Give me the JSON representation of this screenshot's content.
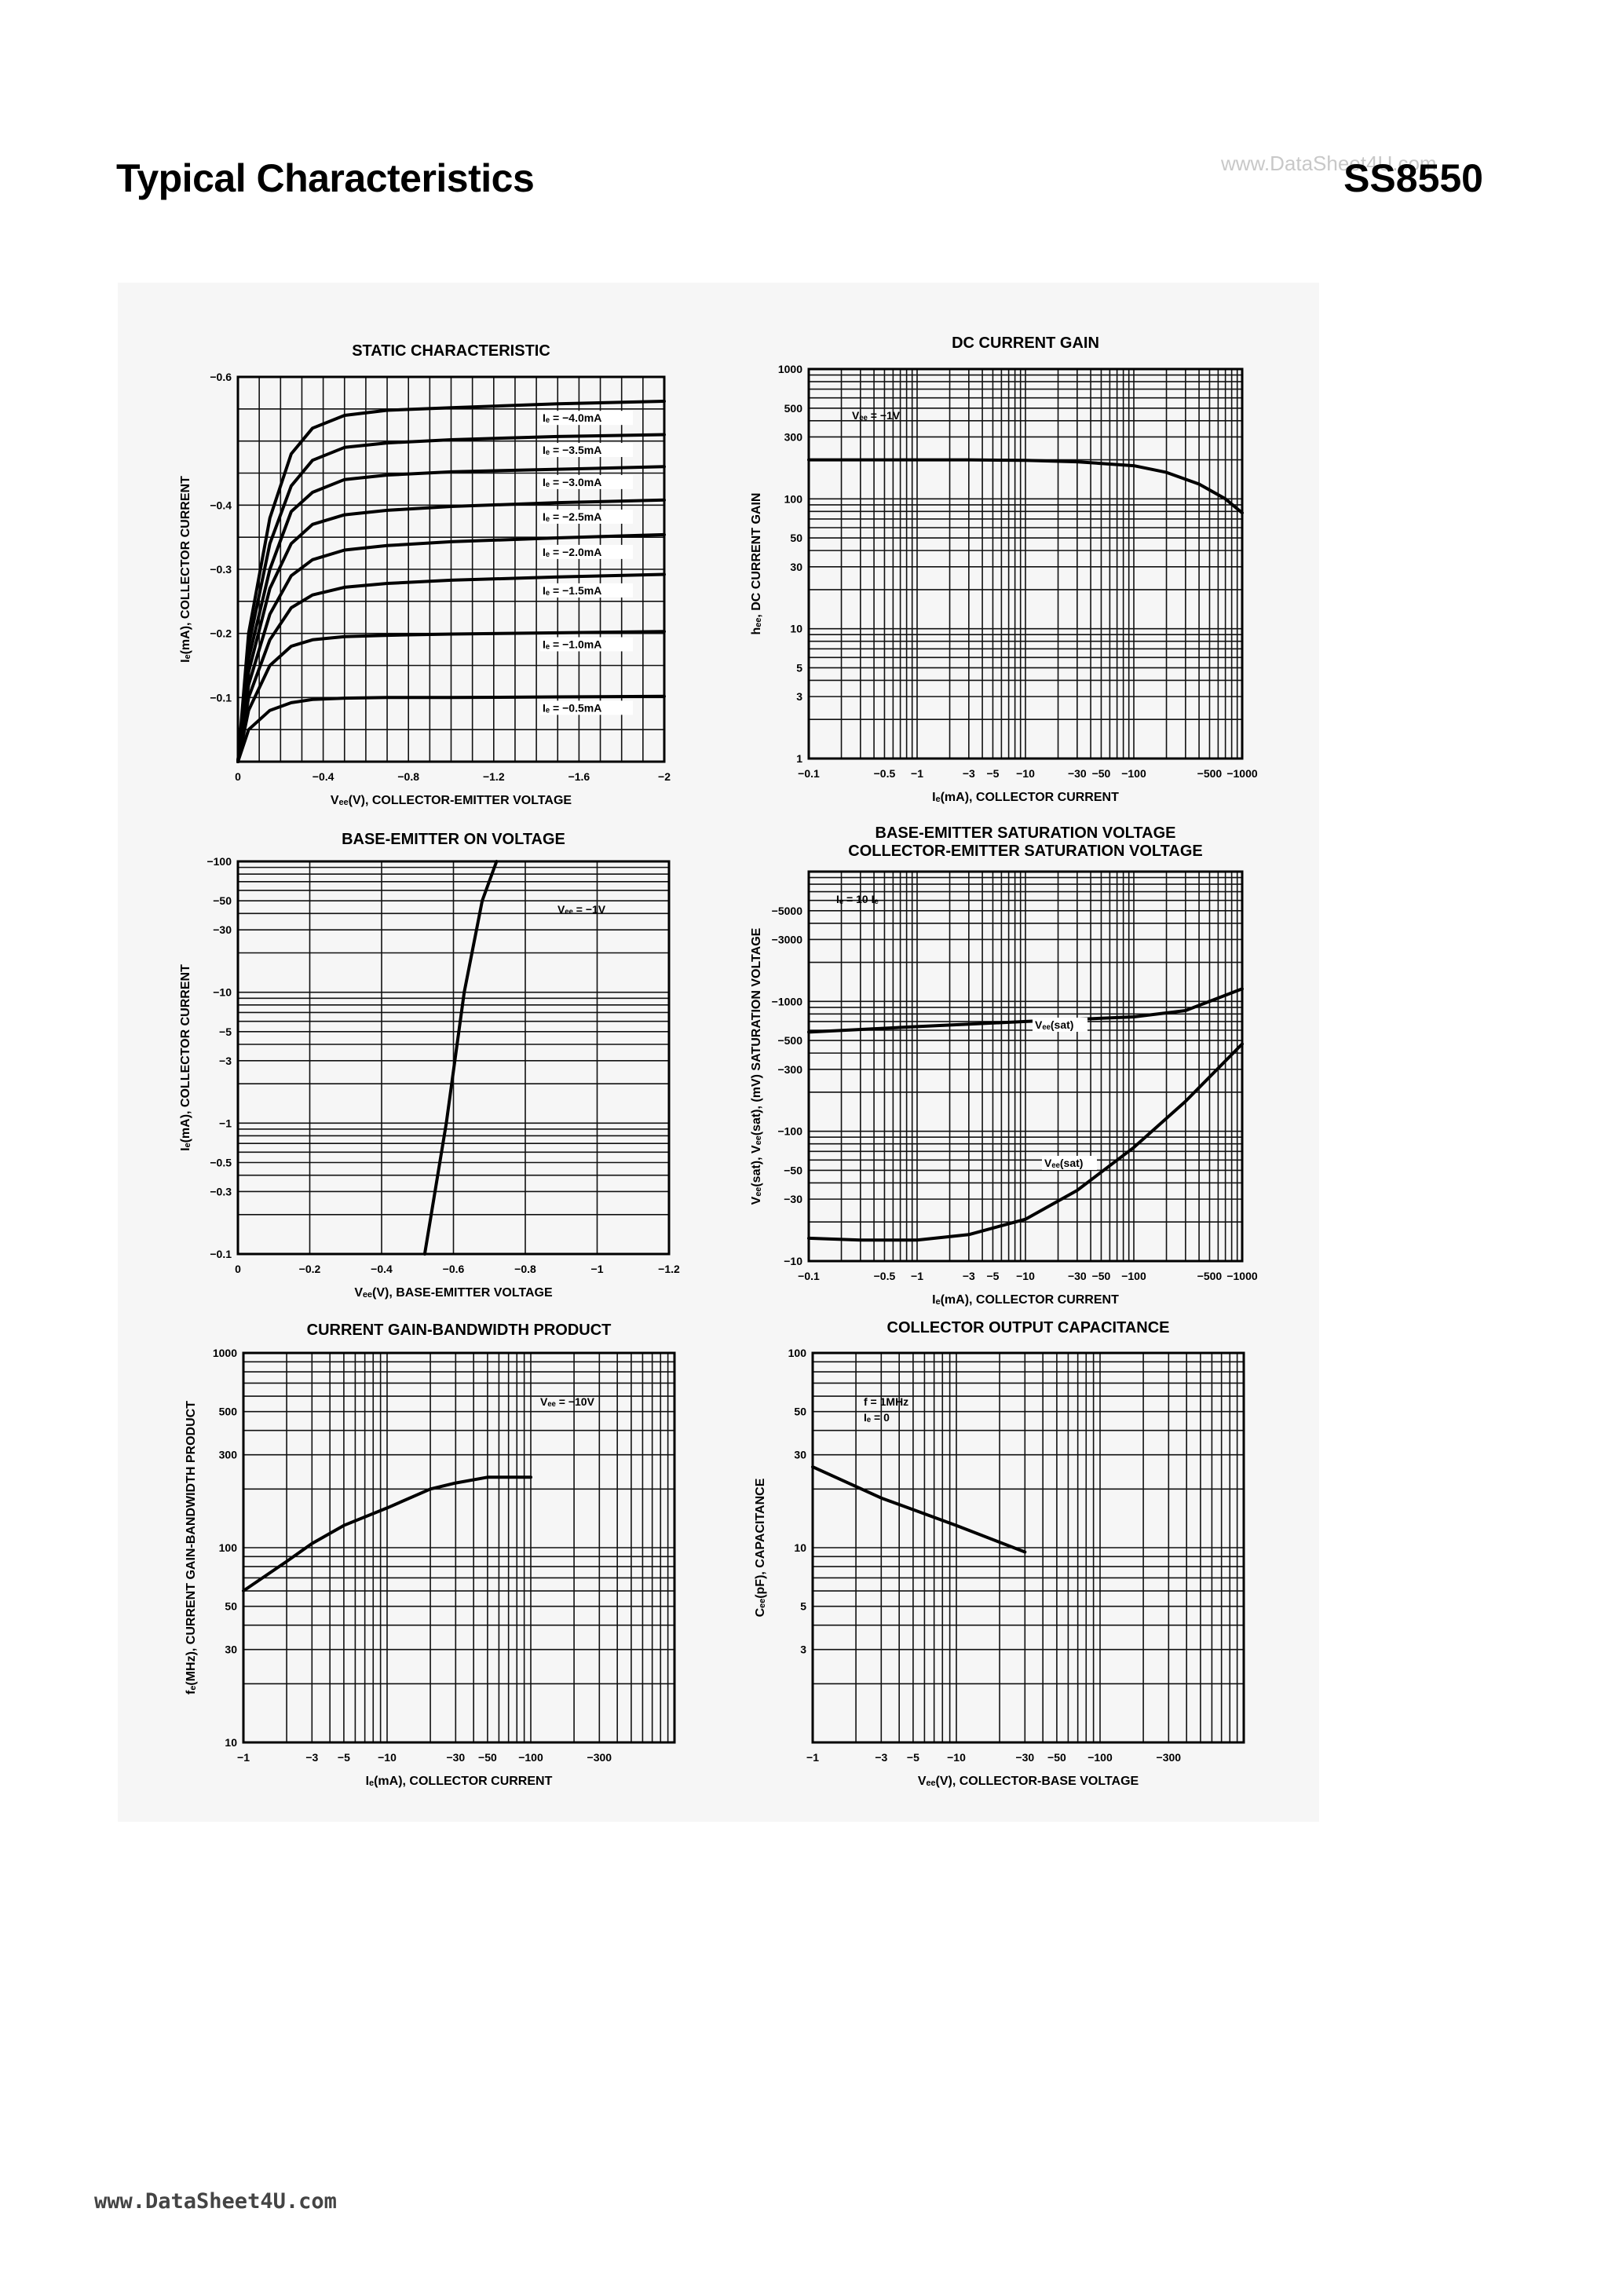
{
  "page": {
    "title": "Typical Characteristics",
    "part_number": "SS8550",
    "watermark": "www.DataSheet4U.com",
    "footer_url": "www.DataSheet4U.com"
  },
  "chart_data": [
    {
      "id": "static",
      "type": "line",
      "title": "STATIC CHARACTERISTIC",
      "xlabel": "Vₑₑ(V), COLLECTOR-EMITTER VOLTAGE",
      "ylabel": "Iₑ(mA), COLLECTOR CURRENT",
      "xscale": "linear",
      "yscale": "linear",
      "xlim": [
        0,
        -2
      ],
      "ylim": [
        0,
        -0.6
      ],
      "xticks": [
        0,
        -0.4,
        -0.8,
        -1.2,
        -1.6,
        -2
      ],
      "xticklabels": [
        "0",
        "−0.4",
        "−0.8",
        "−1.2",
        "−1.6",
        "−2"
      ],
      "yticks": [
        -0.1,
        -0.2,
        -0.3,
        -0.4,
        -0.6
      ],
      "yticklabels": [
        "−0.1",
        "−0.2",
        "−0.3",
        "−0.4",
        "−0.6"
      ],
      "xgrid": [
        0,
        -0.1,
        -0.2,
        -0.3,
        -0.4,
        -0.5,
        -0.6,
        -0.7,
        -0.8,
        -0.9,
        -1.0,
        -1.1,
        -1.2,
        -1.3,
        -1.4,
        -1.5,
        -1.6,
        -1.7,
        -1.8,
        -1.9,
        -2.0
      ],
      "ygrid": [
        0,
        -0.05,
        -0.1,
        -0.15,
        -0.2,
        -0.25,
        -0.3,
        -0.35,
        -0.4,
        -0.45,
        -0.5,
        -0.55,
        -0.6
      ],
      "series": [
        {
          "name": "Iₑ = −4.0mA",
          "x": [
            0,
            -0.05,
            -0.15,
            -0.25,
            -0.35,
            -0.5,
            -0.7,
            -1.0,
            -1.5,
            -2.0
          ],
          "y": [
            0,
            -0.2,
            -0.38,
            -0.48,
            -0.52,
            -0.54,
            -0.548,
            -0.552,
            -0.558,
            -0.562
          ]
        },
        {
          "name": "Iₑ = −3.5mA",
          "x": [
            0,
            -0.05,
            -0.15,
            -0.25,
            -0.35,
            -0.5,
            -0.7,
            -1.0,
            -1.5,
            -2.0
          ],
          "y": [
            0,
            -0.18,
            -0.34,
            -0.43,
            -0.47,
            -0.49,
            -0.497,
            -0.502,
            -0.507,
            -0.51
          ]
        },
        {
          "name": "Iₑ = −3.0mA",
          "x": [
            0,
            -0.05,
            -0.15,
            -0.25,
            -0.35,
            -0.5,
            -0.7,
            -1.0,
            -1.5,
            -2.0
          ],
          "y": [
            0,
            -0.16,
            -0.3,
            -0.39,
            -0.42,
            -0.44,
            -0.447,
            -0.452,
            -0.456,
            -0.46
          ]
        },
        {
          "name": "Iₑ = −2.5mA",
          "x": [
            0,
            -0.05,
            -0.15,
            -0.25,
            -0.35,
            -0.5,
            -0.7,
            -1.0,
            -1.5,
            -2.0
          ],
          "y": [
            0,
            -0.14,
            -0.27,
            -0.34,
            -0.37,
            -0.385,
            -0.392,
            -0.398,
            -0.404,
            -0.408
          ]
        },
        {
          "name": "Iₑ = −2.0mA",
          "x": [
            0,
            -0.05,
            -0.15,
            -0.25,
            -0.35,
            -0.5,
            -0.7,
            -1.0,
            -1.5,
            -2.0
          ],
          "y": [
            0,
            -0.12,
            -0.23,
            -0.29,
            -0.315,
            -0.33,
            -0.337,
            -0.343,
            -0.349,
            -0.354
          ]
        },
        {
          "name": "Iₑ = −1.5mA",
          "x": [
            0,
            -0.05,
            -0.15,
            -0.25,
            -0.35,
            -0.5,
            -0.7,
            -1.0,
            -1.5,
            -2.0
          ],
          "y": [
            0,
            -0.1,
            -0.19,
            -0.24,
            -0.26,
            -0.272,
            -0.278,
            -0.283,
            -0.288,
            -0.292
          ]
        },
        {
          "name": "Iₑ = −1.0mA",
          "x": [
            0,
            -0.05,
            -0.15,
            -0.25,
            -0.35,
            -0.5,
            -0.7,
            -1.0,
            -1.5,
            -2.0
          ],
          "y": [
            0,
            -0.08,
            -0.15,
            -0.18,
            -0.19,
            -0.195,
            -0.197,
            -0.199,
            -0.201,
            -0.203
          ]
        },
        {
          "name": "Iₑ = −0.5mA",
          "x": [
            0,
            -0.05,
            -0.15,
            -0.25,
            -0.35,
            -0.5,
            -0.7,
            -1.0,
            -1.5,
            -2.0
          ],
          "y": [
            0,
            -0.05,
            -0.08,
            -0.092,
            -0.097,
            -0.099,
            -0.1,
            -0.1,
            -0.101,
            -0.102
          ]
        }
      ]
    },
    {
      "id": "dcgain",
      "type": "line",
      "title": "DC CURRENT GAIN",
      "xlabel": "Iₑ(mA), COLLECTOR CURRENT",
      "ylabel": "hₑₑ, DC CURRENT GAIN",
      "xscale": "log",
      "yscale": "log",
      "xlim": [
        0.1,
        1000
      ],
      "ylim": [
        1,
        1000
      ],
      "xticks": [
        0.1,
        0.5,
        1,
        3,
        5,
        10,
        30,
        50,
        100,
        500,
        1000
      ],
      "xticklabels": [
        "−0.1",
        "−0.5",
        "−1",
        "−3",
        "−5",
        "−10",
        "−30",
        "−50",
        "−100",
        "−500",
        "−1000"
      ],
      "yticks": [
        1,
        3,
        5,
        10,
        30,
        50,
        100,
        300,
        500,
        1000
      ],
      "yticklabels": [
        "1",
        "3",
        "5",
        "10",
        "30",
        "50",
        "100",
        "300",
        "500",
        "1000"
      ],
      "annotation": "Vₑₑ = −1V",
      "series": [
        {
          "x": [
            0.1,
            0.3,
            1,
            3,
            10,
            30,
            100,
            200,
            400,
            700,
            1000
          ],
          "y": [
            200,
            200,
            200,
            200,
            198,
            193,
            180,
            160,
            130,
            100,
            78
          ]
        }
      ]
    },
    {
      "id": "beon",
      "type": "line",
      "title": "BASE-EMITTER ON VOLTAGE",
      "xlabel": "Vₑₑ(V), BASE-EMITTER VOLTAGE",
      "ylabel": "Iₑ(mA), COLLECTOR CURRENT",
      "xscale": "linear",
      "yscale": "log",
      "xlim": [
        0,
        -1.2
      ],
      "ylim": [
        0.1,
        100
      ],
      "xticks": [
        0,
        -0.2,
        -0.4,
        -0.6,
        -0.8,
        -1,
        -1.2
      ],
      "xticklabels": [
        "0",
        "−0.2",
        "−0.4",
        "−0.6",
        "−0.8",
        "−1",
        "−1.2"
      ],
      "yticks": [
        0.1,
        0.3,
        0.5,
        1,
        3,
        5,
        10,
        30,
        50,
        100
      ],
      "yticklabels": [
        "−0.1",
        "−0.3",
        "−0.5",
        "−1",
        "−3",
        "−5",
        "−10",
        "−30",
        "−50",
        "−100"
      ],
      "annotation": "Vₑₑ = −1V",
      "series": [
        {
          "x": [
            -0.52,
            -0.58,
            -0.63,
            -0.68,
            -0.72
          ],
          "y": [
            0.1,
            1,
            10,
            50,
            100
          ]
        }
      ]
    },
    {
      "id": "sat",
      "type": "line",
      "title": "BASE-EMITTER SATURATION VOLTAGE",
      "subtitle": "COLLECTOR-EMITTER SATURATION VOLTAGE",
      "xlabel": "Iₑ(mA), COLLECTOR CURRENT",
      "ylabel": "Vₑₑ(sat), Vₑₑ(sat), (mV) SATURATION VOLTAGE",
      "xscale": "log",
      "yscale": "log",
      "xlim": [
        0.1,
        1000
      ],
      "ylim": [
        10,
        10000
      ],
      "xticks": [
        0.1,
        0.5,
        1,
        3,
        5,
        10,
        30,
        50,
        100,
        500,
        1000
      ],
      "xticklabels": [
        "−0.1",
        "−0.5",
        "−1",
        "−3",
        "−5",
        "−10",
        "−30",
        "−50",
        "−100",
        "−500",
        "−1000"
      ],
      "yticks": [
        10,
        30,
        50,
        100,
        300,
        500,
        1000,
        3000,
        5000
      ],
      "yticklabels": [
        "−10",
        "−30",
        "−50",
        "−100",
        "−300",
        "−500",
        "−1000",
        "−3000",
        "−5000"
      ],
      "annotation": "Iₑ = 10 Iₑ",
      "series": [
        {
          "name": "Vₑₑ(sat)",
          "x": [
            0.1,
            1,
            10,
            100,
            300,
            1000
          ],
          "y": [
            580,
            640,
            700,
            760,
            850,
            1250
          ]
        },
        {
          "name": "Vₑₑ(sat)",
          "x": [
            0.1,
            0.3,
            1,
            3,
            10,
            30,
            100,
            300,
            1000
          ],
          "y": [
            15,
            14.5,
            14.5,
            16,
            21,
            35,
            75,
            170,
            470
          ]
        }
      ]
    },
    {
      "id": "ft",
      "type": "line",
      "title": "CURRENT GAIN-BANDWIDTH PRODUCT",
      "xlabel": "Iₑ(mA), COLLECTOR CURRENT",
      "ylabel": "fₑ(MHz), CURRENT GAIN-BANDWIDTH PRODUCT",
      "xscale": "log",
      "yscale": "log",
      "xlim": [
        1,
        1000
      ],
      "ylim": [
        10,
        1000
      ],
      "xticks": [
        1,
        3,
        5,
        10,
        30,
        50,
        100,
        300
      ],
      "xticklabels": [
        "−1",
        "−3",
        "−5",
        "−10",
        "−30",
        "−50",
        "−100",
        "−300"
      ],
      "yticks": [
        10,
        30,
        50,
        100,
        300,
        500,
        1000
      ],
      "yticklabels": [
        "10",
        "30",
        "50",
        "100",
        "300",
        "500",
        "1000"
      ],
      "annotation": "Vₑₑ = −10V",
      "series": [
        {
          "x": [
            1,
            2,
            3,
            5,
            10,
            20,
            30,
            50,
            100
          ],
          "y": [
            60,
            85,
            105,
            130,
            160,
            200,
            215,
            230,
            230
          ]
        }
      ]
    },
    {
      "id": "cob",
      "type": "line",
      "title": "COLLECTOR OUTPUT CAPACITANCE",
      "xlabel": "Vₑₑ(V), COLLECTOR-BASE VOLTAGE",
      "ylabel": "Cₑₑ(pF), CAPACITANCE",
      "xscale": "log",
      "yscale": "log",
      "xlim": [
        1,
        1000
      ],
      "ylim": [
        1,
        100
      ],
      "xticks": [
        1,
        3,
        5,
        10,
        30,
        50,
        100,
        300
      ],
      "xticklabels": [
        "−1",
        "−3",
        "−5",
        "−10",
        "−30",
        "−50",
        "−100",
        "−300"
      ],
      "yticks": [
        3,
        5,
        10,
        30,
        50,
        100
      ],
      "yticklabels": [
        "3",
        "5",
        "10",
        "30",
        "50",
        "100"
      ],
      "annotation": [
        "f = 1MHz",
        "Iₑ = 0"
      ],
      "series": [
        {
          "x": [
            1,
            3,
            10,
            30
          ],
          "y": [
            26,
            18,
            13,
            9.5
          ]
        }
      ]
    }
  ]
}
